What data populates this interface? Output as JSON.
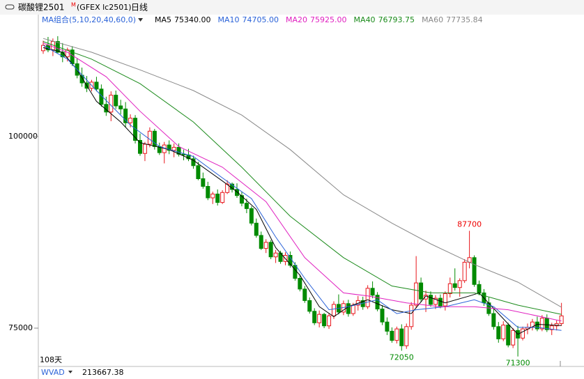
{
  "header": {
    "name": "碳酸锂2501",
    "flag": "M",
    "code": "(GFEX lc2501)",
    "period": "日线"
  },
  "chart_data": {
    "type": "candlestick",
    "indicator_label": "MA组合(5,10,20,40,60,0)",
    "ylim": [
      71000,
      116000
    ],
    "yticks": [
      75000,
      100000
    ],
    "up_color": "#e8161b",
    "down_color": "#008a00",
    "ohlc": [
      [
        111200,
        112500,
        110800,
        111900
      ],
      [
        111900,
        113000,
        111000,
        111300
      ],
      [
        111300,
        112800,
        110500,
        112400
      ],
      [
        112400,
        113100,
        110900,
        111000
      ],
      [
        111000,
        112200,
        109700,
        110400
      ],
      [
        110400,
        111600,
        109800,
        111300
      ],
      [
        111300,
        111800,
        109200,
        109500
      ],
      [
        109500,
        110200,
        107600,
        108000
      ],
      [
        108000,
        109000,
        106500,
        107000
      ],
      [
        107000,
        107900,
        105800,
        106300
      ],
      [
        106300,
        107400,
        105900,
        107100
      ],
      [
        107100,
        107800,
        105900,
        106200
      ],
      [
        106200,
        106800,
        103900,
        104200
      ],
      [
        104200,
        105200,
        102700,
        103200
      ],
      [
        103200,
        105900,
        102000,
        105400
      ],
      [
        105400,
        106000,
        103600,
        104000
      ],
      [
        104000,
        104800,
        102900,
        103600
      ],
      [
        103600,
        104500,
        101200,
        101800
      ],
      [
        101800,
        102900,
        101200,
        102400
      ],
      [
        102400,
        102800,
        99100,
        99500
      ],
      [
        99500,
        100400,
        97500,
        97800
      ],
      [
        97800,
        99300,
        96800,
        99000
      ],
      [
        99000,
        101200,
        98600,
        100700
      ],
      [
        100700,
        101000,
        98300,
        98700
      ],
      [
        98700,
        99200,
        97600,
        97900
      ],
      [
        97900,
        99300,
        96500,
        98900
      ],
      [
        98900,
        99500,
        97700,
        98200
      ],
      [
        98200,
        99100,
        97300,
        98600
      ],
      [
        98600,
        99100,
        97400,
        97700
      ],
      [
        97700,
        98300,
        96900,
        97600
      ],
      [
        97600,
        98400,
        96800,
        97100
      ],
      [
        97100,
        97500,
        95800,
        96200
      ],
      [
        96200,
        96700,
        94300,
        94500
      ],
      [
        94500,
        95300,
        93200,
        93500
      ],
      [
        93500,
        94100,
        91700,
        92000
      ],
      [
        92000,
        92800,
        91200,
        92500
      ],
      [
        92500,
        93100,
        91000,
        91400
      ],
      [
        91400,
        93000,
        91200,
        92700
      ],
      [
        92700,
        94300,
        92500,
        93800
      ],
      [
        93800,
        94000,
        92700,
        93100
      ],
      [
        93100,
        93900,
        92000,
        92300
      ],
      [
        92300,
        92800,
        90900,
        91300
      ],
      [
        91300,
        91900,
        90000,
        90600
      ],
      [
        90600,
        90900,
        88400,
        88700
      ],
      [
        88700,
        89300,
        86800,
        87100
      ],
      [
        87100,
        87600,
        85200,
        85400
      ],
      [
        85400,
        86600,
        84800,
        86200
      ],
      [
        86200,
        86500,
        84000,
        84300
      ],
      [
        84300,
        85200,
        83500,
        84800
      ],
      [
        84800,
        85100,
        83400,
        83700
      ],
      [
        83700,
        84900,
        83200,
        84500
      ],
      [
        84500,
        85000,
        82900,
        83200
      ],
      [
        83200,
        83600,
        81200,
        81500
      ],
      [
        81500,
        82000,
        79800,
        80100
      ],
      [
        80100,
        80500,
        78300,
        78600
      ],
      [
        78600,
        79000,
        76900,
        77200
      ],
      [
        77200,
        77600,
        75400,
        75700
      ],
      [
        75700,
        77300,
        75100,
        76800
      ],
      [
        76800,
        77000,
        75000,
        75300
      ],
      [
        75300,
        76900,
        74900,
        76600
      ],
      [
        76600,
        78500,
        76200,
        78100
      ],
      [
        78100,
        79400,
        76800,
        77100
      ],
      [
        77100,
        78600,
        76700,
        78200
      ],
      [
        78200,
        78700,
        76500,
        76900
      ],
      [
        76900,
        78300,
        76600,
        78000
      ],
      [
        78000,
        79200,
        77300,
        78600
      ],
      [
        78600,
        79100,
        77400,
        77800
      ],
      [
        77800,
        80600,
        77500,
        80200
      ],
      [
        80200,
        81100,
        78900,
        79300
      ],
      [
        79300,
        79700,
        77200,
        77500
      ],
      [
        77500,
        78000,
        75400,
        75800
      ],
      [
        75800,
        76400,
        74100,
        74600
      ],
      [
        74600,
        75100,
        73100,
        73400
      ],
      [
        73400,
        75200,
        73000,
        74900
      ],
      [
        74900,
        75500,
        72050,
        72700
      ],
      [
        72700,
        75600,
        72300,
        75200
      ],
      [
        75200,
        78400,
        74800,
        78000
      ],
      [
        78000,
        84400,
        77600,
        80900
      ],
      [
        80900,
        81600,
        78400,
        78800
      ],
      [
        78800,
        79900,
        77100,
        79300
      ],
      [
        79300,
        79800,
        77800,
        78100
      ],
      [
        78100,
        79300,
        77500,
        78900
      ],
      [
        78900,
        79400,
        77600,
        77900
      ],
      [
        77900,
        79800,
        77300,
        79500
      ],
      [
        79500,
        81600,
        79000,
        80800
      ],
      [
        80800,
        82800,
        79900,
        80300
      ],
      [
        80300,
        81500,
        79100,
        81200
      ],
      [
        81200,
        84000,
        80900,
        83600
      ],
      [
        83600,
        87700,
        82800,
        84200
      ],
      [
        84200,
        84500,
        80400,
        80700
      ],
      [
        80700,
        81200,
        79300,
        79600
      ],
      [
        79600,
        80100,
        77900,
        78300
      ],
      [
        78300,
        79000,
        76600,
        76900
      ],
      [
        76900,
        77600,
        74800,
        75200
      ],
      [
        75200,
        75800,
        73100,
        73600
      ],
      [
        73600,
        75900,
        73300,
        75400
      ],
      [
        75400,
        75700,
        72500,
        72800
      ],
      [
        72800,
        75000,
        72400,
        74700
      ],
      [
        74700,
        75300,
        71300,
        73700
      ],
      [
        73700,
        75200,
        73400,
        74900
      ],
      [
        74900,
        75600,
        74200,
        75100
      ],
      [
        75100,
        76200,
        74700,
        75800
      ],
      [
        75800,
        76500,
        74600,
        74900
      ],
      [
        74900,
        76700,
        74600,
        76300
      ],
      [
        76300,
        76800,
        74500,
        74800
      ],
      [
        74800,
        75700,
        74100,
        75300
      ],
      [
        75300,
        76000,
        74700,
        75600
      ],
      [
        75600,
        78300,
        75300,
        76600
      ]
    ],
    "extreme_labels": [
      87700,
      72050,
      71300
    ],
    "day_count_label": "108天",
    "series": [
      {
        "name": "MA5",
        "color": "#000000",
        "latest": {
          "value": 75340,
          "label": "75340.00"
        },
        "x": [
          0,
          4,
          7,
          11,
          16,
          20,
          26,
          31,
          37,
          40,
          44,
          48,
          53,
          57,
          60,
          63,
          67,
          72,
          76,
          79,
          83,
          88,
          90,
          94,
          98,
          102,
          107
        ],
        "values": [
          111600,
          111000,
          108700,
          104600,
          101900,
          99200,
          98300,
          96900,
          94200,
          92800,
          90500,
          85500,
          81900,
          77800,
          76500,
          77800,
          78700,
          77400,
          76900,
          79200,
          78300,
          79200,
          79600,
          76900,
          74200,
          75500,
          75340
        ]
      },
      {
        "name": "MA10",
        "color": "#2a62d8",
        "latest": {
          "value": 74705,
          "label": "74705.00"
        },
        "x": [
          0,
          5,
          11,
          18,
          24,
          31,
          37,
          43,
          48,
          54,
          59,
          63,
          69,
          73,
          77,
          83,
          89,
          93,
          98,
          102,
          107
        ],
        "values": [
          111900,
          110100,
          106000,
          101500,
          98700,
          97400,
          94600,
          91900,
          86900,
          81500,
          77400,
          77800,
          78700,
          76900,
          77400,
          77800,
          78700,
          77800,
          75100,
          75100,
          74705
        ]
      },
      {
        "name": "MA20",
        "color": "#e020c0",
        "latest": {
          "value": 75925,
          "label": "75925.00"
        },
        "x": [
          0,
          5,
          13,
          20,
          28,
          37,
          46,
          54,
          62,
          67,
          75,
          82,
          89,
          96,
          107
        ],
        "values": [
          112200,
          111000,
          107800,
          103300,
          98700,
          96000,
          91500,
          84200,
          79600,
          79200,
          78300,
          77800,
          77800,
          77400,
          75925
        ]
      },
      {
        "name": "MA40",
        "color": "#1a8a1a",
        "latest": {
          "value": 76793.75,
          "label": "76793.75"
        },
        "x": [
          0,
          10,
          20,
          31,
          41,
          51,
          62,
          72,
          80,
          89,
          98,
          107
        ],
        "values": [
          112400,
          110100,
          106900,
          101900,
          96000,
          89600,
          84200,
          80500,
          79600,
          79600,
          78000,
          76793.75
        ]
      },
      {
        "name": "MA60",
        "color": "#888888",
        "latest": {
          "value": 77735.84,
          "label": "77735.84"
        },
        "x": [
          0,
          10,
          20,
          31,
          41,
          51,
          62,
          72,
          80,
          89,
          98,
          107
        ],
        "values": [
          112800,
          111000,
          108700,
          106000,
          102800,
          98300,
          92400,
          88700,
          86000,
          83300,
          81000,
          77735.84
        ]
      }
    ]
  },
  "lower_panel": {
    "name": "WVAD",
    "value": 213667.38
  }
}
